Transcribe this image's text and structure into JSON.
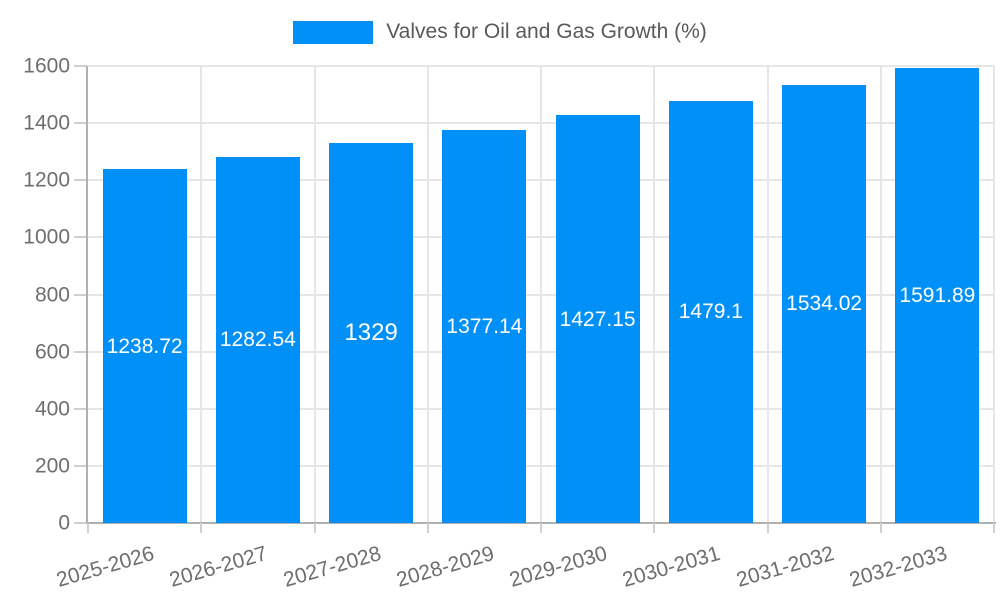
{
  "legend": {
    "label": "Valves for Oil and Gas Growth (%)",
    "swatch_color": "#0190f8"
  },
  "chart_data": {
    "type": "bar",
    "title": "Valves for Oil and Gas Growth (%)",
    "categories": [
      "2025-2026",
      "2026-2027",
      "2027-2028",
      "2028-2029",
      "2029-2030",
      "2030-2031",
      "2031-2032",
      "2032-2033"
    ],
    "values": [
      1238.72,
      1282.54,
      1329,
      1377.14,
      1427.15,
      1479.1,
      1534.02,
      1591.89
    ],
    "data_labels": [
      "1238.72",
      "1282.54",
      "1329",
      "1377.14",
      "1427.15",
      "1479.1",
      "1534.02",
      "1591.89"
    ],
    "xlabel": "",
    "ylabel": "",
    "ylim": [
      0,
      1600
    ],
    "yticks": [
      0,
      200,
      400,
      600,
      800,
      1000,
      1200,
      1400,
      1600
    ],
    "grid": true,
    "legend_position": "top",
    "x_label_rotation_deg": -16,
    "colors": {
      "bar": "#0190f8",
      "gridline": "#e6e6e6",
      "axis_line": "#b0b0b0",
      "tick": "#cfcfcf",
      "axis_text": "#6e6e6e",
      "legend_text": "#58595b",
      "data_label": "#ffffff",
      "background": "#ffffff"
    }
  }
}
